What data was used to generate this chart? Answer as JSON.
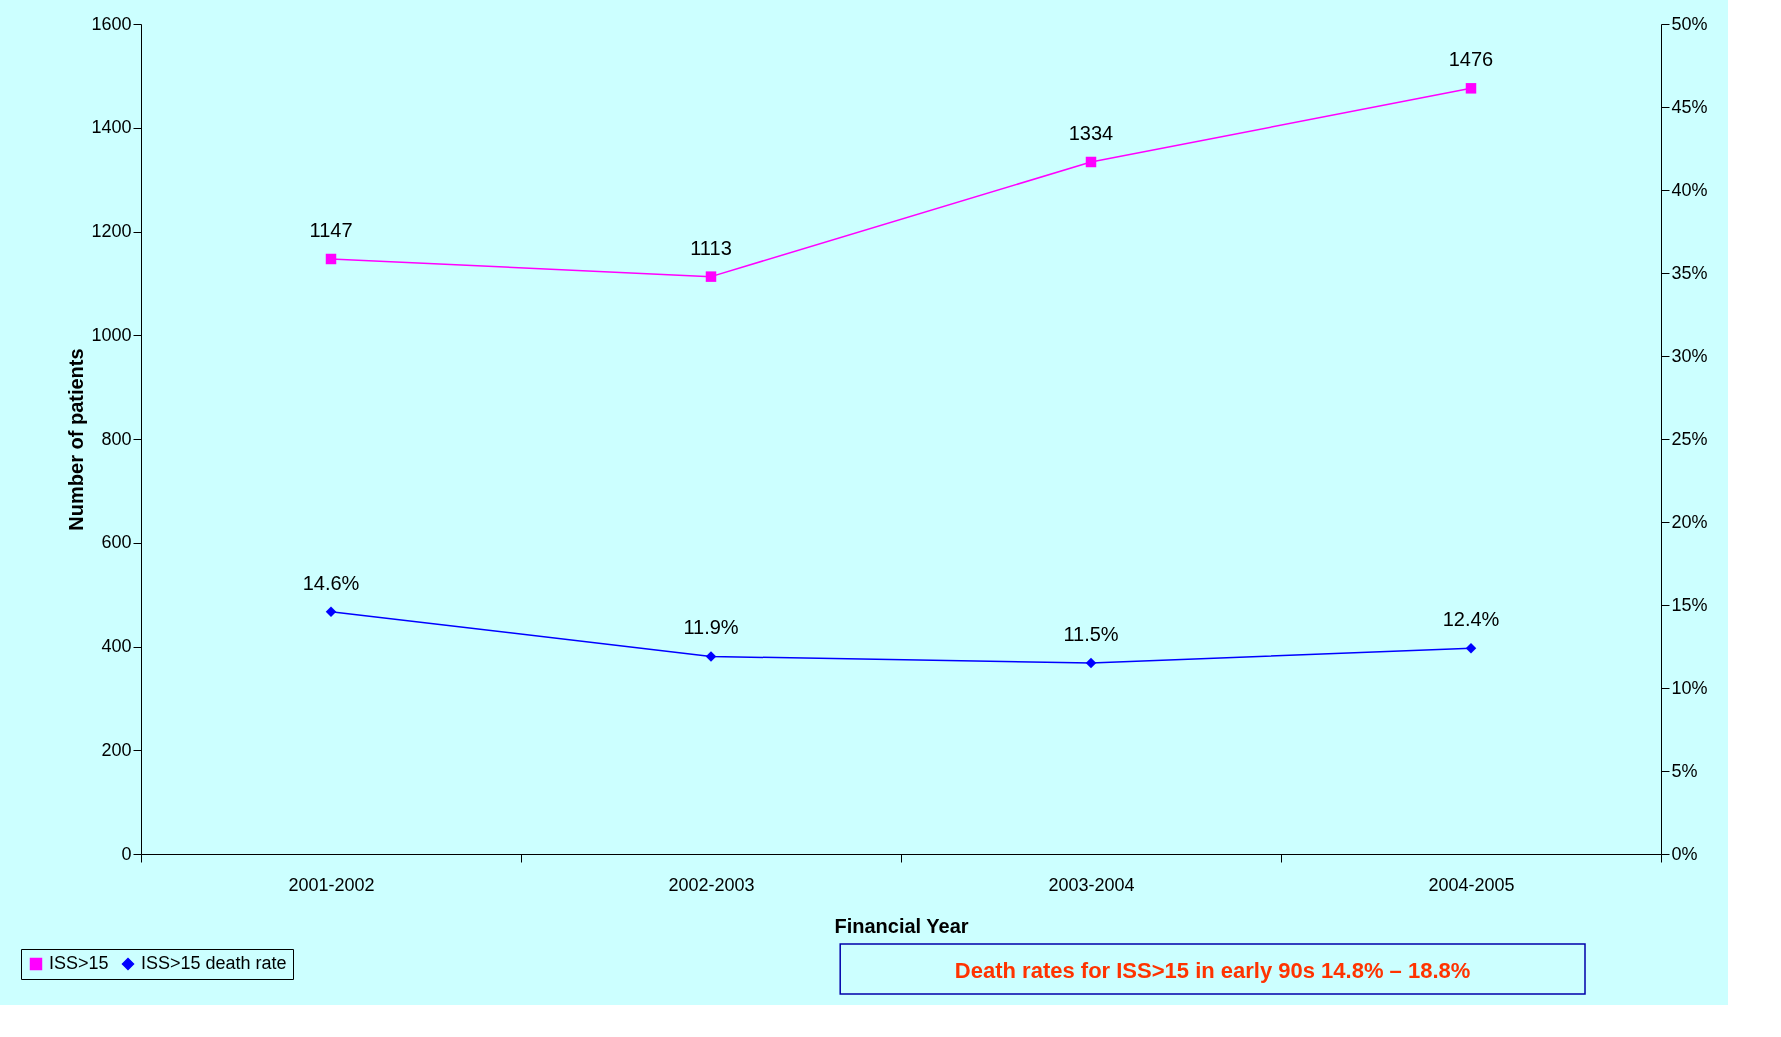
{
  "chart_data": {
    "type": "line",
    "categories": [
      "2001-2002",
      "2002-2003",
      "2003-2004",
      "2004-2005"
    ],
    "series": [
      {
        "name": "ISS>15",
        "color": "#ff00ff",
        "marker": "square",
        "values": [
          1147,
          1113,
          1334,
          1476
        ],
        "value_labels": [
          "1147",
          "1113",
          "1334",
          "1476"
        ]
      },
      {
        "name": "ISS>15 death rate",
        "color": "#0000ff",
        "marker": "diamond",
        "axis": "y2",
        "values": [
          14.6,
          11.9,
          11.5,
          12.4
        ],
        "value_labels": [
          "14.6%",
          "11.9%",
          "11.5%",
          "12.4%"
        ]
      }
    ],
    "xlabel": "Financial Year",
    "ylabel": "Number of patients",
    "ylim": [
      0,
      1600
    ],
    "yticks": [
      0,
      200,
      400,
      600,
      800,
      1000,
      1200,
      1400,
      1600
    ],
    "y2lim": [
      0,
      50
    ],
    "y2ticks": [
      {
        "value": 0,
        "label": "0%"
      },
      {
        "value": 5,
        "label": "5%"
      },
      {
        "value": 10,
        "label": "10%"
      },
      {
        "value": 15,
        "label": "15%"
      },
      {
        "value": 20,
        "label": "20%"
      },
      {
        "value": 25,
        "label": "25%"
      },
      {
        "value": 30,
        "label": "30%"
      },
      {
        "value": 35,
        "label": "35%"
      },
      {
        "value": 40,
        "label": "40%"
      },
      {
        "value": 45,
        "label": "45%"
      },
      {
        "value": 50,
        "label": "50%"
      }
    ],
    "annotations": [
      "Death rates for ISS>15 in early 90s 14.8% – 18.8%"
    ],
    "legend": "bottom left",
    "grid": false,
    "line_style": "solid"
  }
}
